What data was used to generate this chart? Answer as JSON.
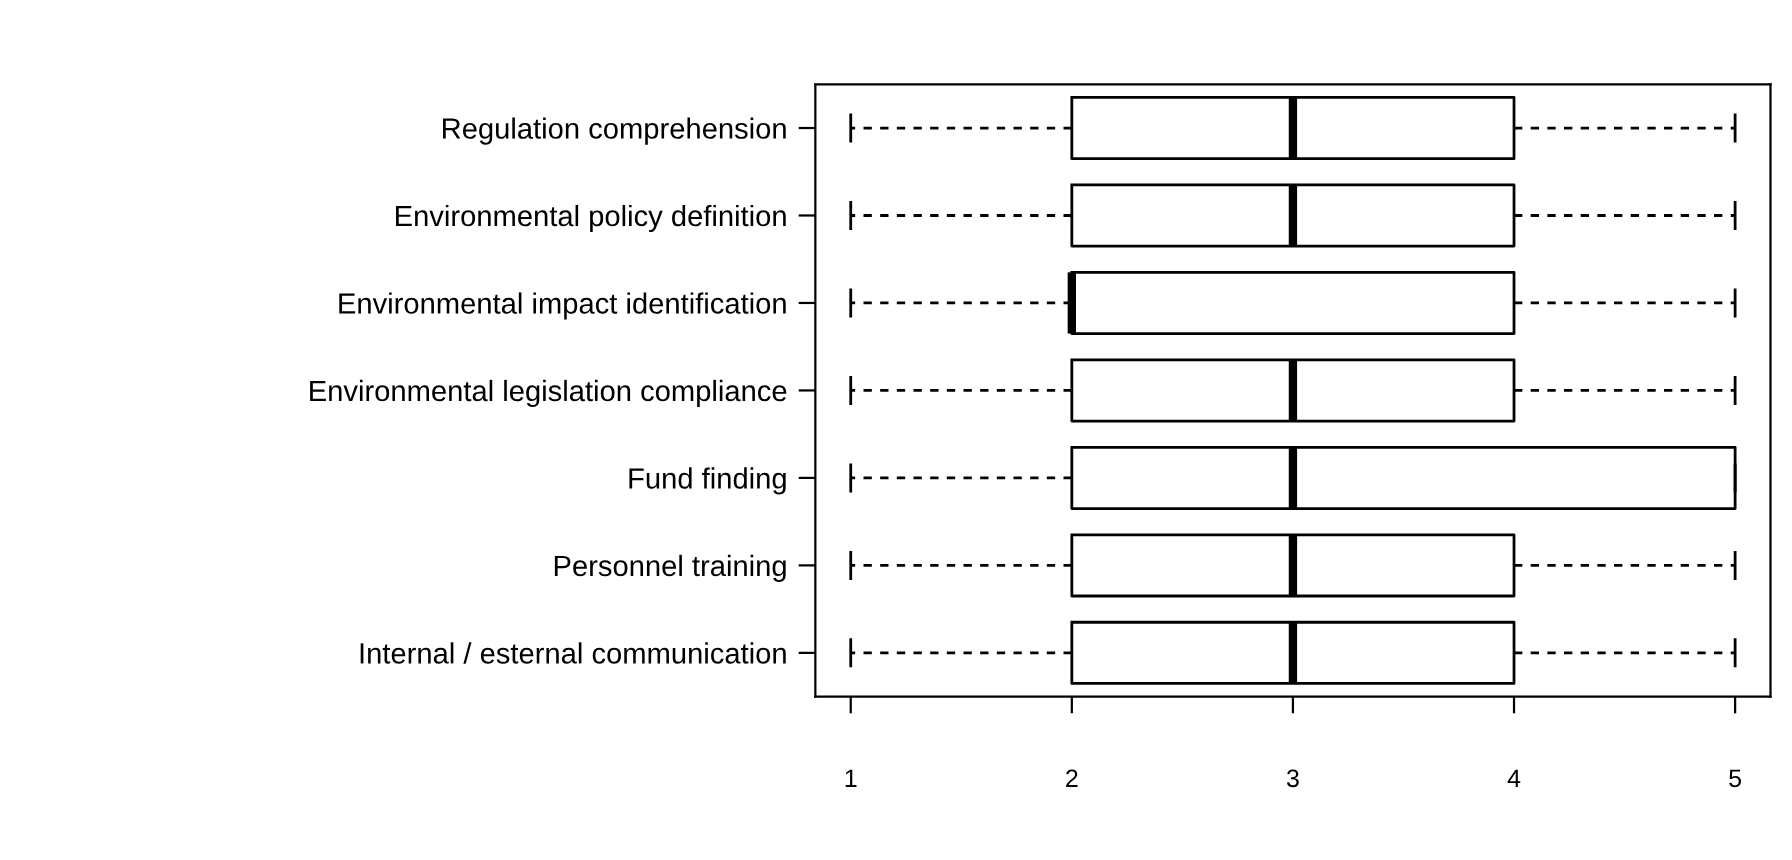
{
  "chart_data": {
    "type": "box",
    "orientation": "horizontal",
    "categories": [
      "Regulation comprehension",
      "Environmental policy definition",
      "Environmental impact identification",
      "Environmental legislation compliance",
      "Fund finding",
      "Personnel training",
      "Internal / esternal communication"
    ],
    "boxes": [
      {
        "low": 1,
        "q1": 2,
        "median": 3,
        "q3": 4,
        "high": 5
      },
      {
        "low": 1,
        "q1": 2,
        "median": 3,
        "q3": 4,
        "high": 5
      },
      {
        "low": 1,
        "q1": 2,
        "median": 2,
        "q3": 4,
        "high": 5
      },
      {
        "low": 1,
        "q1": 2,
        "median": 3,
        "q3": 4,
        "high": 5
      },
      {
        "low": 1,
        "q1": 2,
        "median": 3,
        "q3": 5,
        "high": 5
      },
      {
        "low": 1,
        "q1": 2,
        "median": 3,
        "q3": 4,
        "high": 5
      },
      {
        "low": 1,
        "q1": 2,
        "median": 3,
        "q3": 4,
        "high": 5
      }
    ],
    "xlim": [
      0.84,
      5.16
    ],
    "xticks": [
      1,
      2,
      3,
      4,
      5
    ],
    "grid": false,
    "legend": false
  }
}
